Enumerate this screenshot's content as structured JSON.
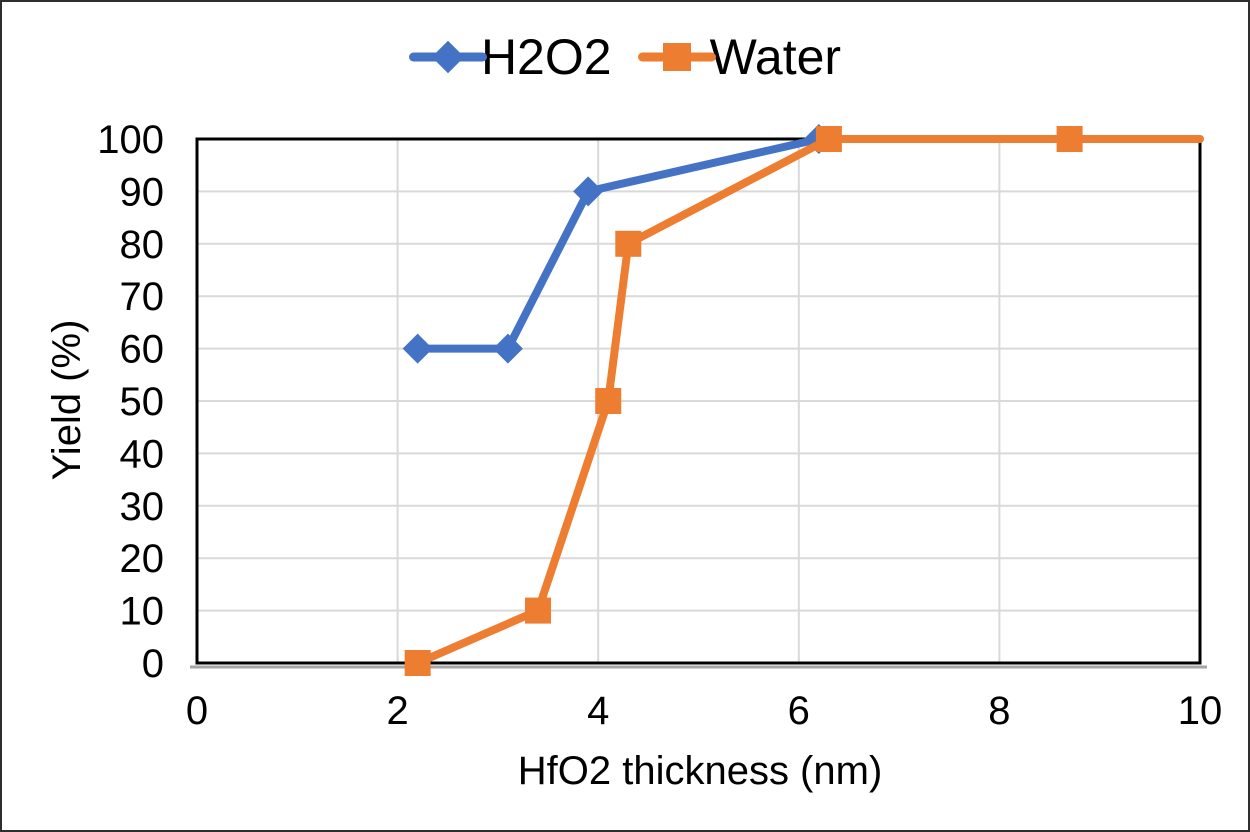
{
  "chart_data": {
    "type": "line",
    "title": "",
    "xlabel": "HfO2 thickness (nm)",
    "ylabel": "Yield (%)",
    "xlim": [
      0,
      10
    ],
    "ylim": [
      0,
      100
    ],
    "x_ticks": [
      0,
      2,
      4,
      6,
      8,
      10
    ],
    "y_ticks": [
      0,
      10,
      20,
      30,
      40,
      50,
      60,
      70,
      80,
      90,
      100
    ],
    "grid": true,
    "legend_position": "top-center",
    "colors": {
      "gridline": "#d9d9d9",
      "plot_border": "#000000",
      "axis_line": "#a6a6a6",
      "text": "#000000"
    },
    "series": [
      {
        "name": "H2O2",
        "color": "#4472c4",
        "marker": "diamond",
        "points": [
          {
            "x": 2.2,
            "y": 60
          },
          {
            "x": 3.1,
            "y": 60
          },
          {
            "x": 3.9,
            "y": 90
          },
          {
            "x": 6.2,
            "y": 100
          }
        ]
      },
      {
        "name": "Water",
        "color": "#ed7d31",
        "marker": "square",
        "points": [
          {
            "x": 2.2,
            "y": 0
          },
          {
            "x": 3.4,
            "y": 10
          },
          {
            "x": 4.1,
            "y": 50
          },
          {
            "x": 4.3,
            "y": 80
          },
          {
            "x": 6.3,
            "y": 100
          },
          {
            "x": 8.7,
            "y": 100
          },
          {
            "x": 10,
            "y": 100,
            "marker": false
          }
        ]
      }
    ]
  }
}
